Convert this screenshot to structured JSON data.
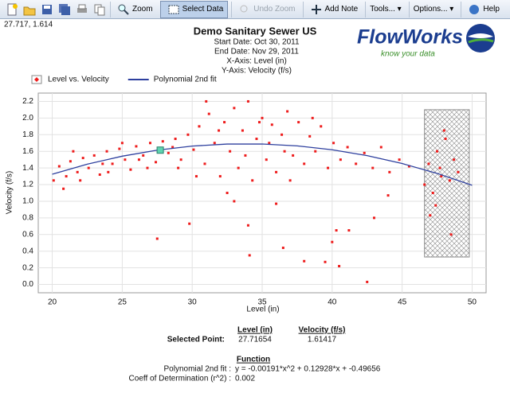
{
  "toolbar": {
    "buttons": [
      "Zoom",
      "Select Data",
      "Undo Zoom",
      "Add Note",
      "Tools...",
      "Options...",
      "Help"
    ]
  },
  "cursor": "27.717, 1.614",
  "logo": {
    "name": "FlowWorks",
    "tagline": "know your data"
  },
  "chart_data": {
    "type": "scatter",
    "title": "Demo Sanitary Sewer US",
    "info_lines": [
      "Start Date:  Oct 30, 2011",
      "End Date:  Nov 29, 2011",
      "X-Axis:  Level (in)",
      "Y-Axis:  Velocity (f/s)"
    ],
    "x_label": "Level (in)",
    "y_label": "Velocity (f/s)",
    "xlim": [
      19,
      51
    ],
    "xticks": [
      20,
      25,
      30,
      35,
      40,
      45,
      50
    ],
    "ylim": [
      -0.1,
      2.3
    ],
    "yticks": [
      {
        "value": 0,
        "label": "0.0"
      },
      0.2,
      0.4,
      0.6,
      0.8,
      {
        "value": 1,
        "label": "1.0"
      },
      1.2,
      1.4,
      1.6,
      1.8,
      {
        "value": 2,
        "label": "2.0"
      },
      2.2
    ],
    "grid": true,
    "legend": "top-left",
    "series": [
      {
        "name": "Level vs. Velocity",
        "color": "#ee1c1c",
        "type": "scatter",
        "x": [
          20.1,
          20.5,
          21,
          21.3,
          21.8,
          22.2,
          22.6,
          23,
          23.4,
          23.9,
          24.3,
          24.8,
          25.2,
          25.6,
          26,
          26.5,
          27,
          27.4,
          27.9,
          28.3,
          28.8,
          29.2,
          29.7,
          30.1,
          30.5,
          30.9,
          31.2,
          31.6,
          32,
          32.3,
          32.7,
          33,
          33.3,
          33.6,
          34,
          34.3,
          34.6,
          35,
          35.3,
          35.7,
          36,
          36.4,
          36.8,
          37.2,
          37.6,
          38,
          38.4,
          38.8,
          39.2,
          39.7,
          40.1,
          40.6,
          41.1,
          41.7,
          42.3,
          42.9,
          43.5,
          44.1,
          44.8,
          45.5,
          46.6,
          46.9,
          47.2,
          47.5,
          47.8,
          48.1,
          48.4,
          48.7,
          49,
          47.4,
          48,
          47.7,
          20.8,
          22,
          23.6,
          25,
          26.8,
          28.6,
          30.3,
          31.9,
          33.8,
          35.5,
          37,
          38.6,
          21.5,
          24,
          26.2,
          29,
          31,
          32.5,
          34.8,
          36.6,
          27.5,
          29.8,
          34,
          34.1,
          36.5,
          38,
          39.5,
          40,
          40.3,
          40.5,
          41.2,
          42.5,
          43,
          44,
          47,
          48.5,
          33,
          36
        ],
        "values": [
          1.25,
          1.42,
          1.3,
          1.48,
          1.35,
          1.52,
          1.4,
          1.55,
          1.32,
          1.6,
          1.45,
          1.63,
          1.5,
          1.38,
          1.66,
          1.55,
          1.7,
          1.47,
          1.72,
          1.58,
          1.75,
          1.5,
          1.8,
          1.62,
          1.9,
          1.45,
          2.05,
          1.7,
          1.3,
          1.95,
          1.6,
          2.12,
          1.4,
          1.85,
          2.2,
          1.25,
          1.75,
          2,
          1.5,
          1.92,
          1.35,
          1.8,
          2.08,
          1.55,
          1.95,
          1.45,
          1.78,
          1.6,
          1.9,
          1.4,
          1.7,
          1.5,
          1.65,
          1.45,
          1.58,
          1.4,
          1.65,
          1.35,
          1.5,
          1.42,
          1.2,
          1.45,
          1.1,
          1.6,
          1.3,
          1.75,
          1.25,
          1.5,
          1.35,
          0.95,
          1.85,
          1.4,
          1.15,
          1.25,
          1.45,
          1.7,
          1.4,
          1.65,
          1.3,
          1.85,
          1.55,
          1.7,
          1.25,
          2,
          1.6,
          1.35,
          1.5,
          1.4,
          2.2,
          1.1,
          1.95,
          1.6,
          0.55,
          0.73,
          0.71,
          0.35,
          0.44,
          0.28,
          0.27,
          0.51,
          0.65,
          0.22,
          0.65,
          0.03,
          0.8,
          1.07,
          0.83,
          0.6,
          1,
          0.97
        ]
      },
      {
        "name": "Polynomial 2nd fit",
        "color": "#2d3f9e",
        "type": "line",
        "x": [
          20,
          22.5,
          25,
          27.5,
          30,
          32.5,
          35,
          37.5,
          40,
          42.5,
          45,
          47.5,
          50
        ],
        "values": [
          1.325,
          1.4453,
          1.5417,
          1.6142,
          1.6628,
          1.6876,
          1.6884,
          1.6655,
          1.6186,
          1.5479,
          1.4533,
          1.3348,
          1.1924
        ]
      }
    ],
    "selection": {
      "x": [
        46.6,
        49.8
      ],
      "y": [
        0.33,
        2.1
      ]
    },
    "selected_point": {
      "x": 27.71654,
      "y": 1.61417
    }
  },
  "details": {
    "selected_label": "Selected Point:",
    "level_header": "Level (in)",
    "velocity_header": "Velocity (f/s)",
    "function_header": "Function",
    "fit_label": "Polynomial 2nd fit :",
    "fit_formula": "y = -0.00191*x^2 + 0.12928*x + -0.49656",
    "r2_label": "Coeff of Determination (r^2) :",
    "r2": 0.002
  }
}
